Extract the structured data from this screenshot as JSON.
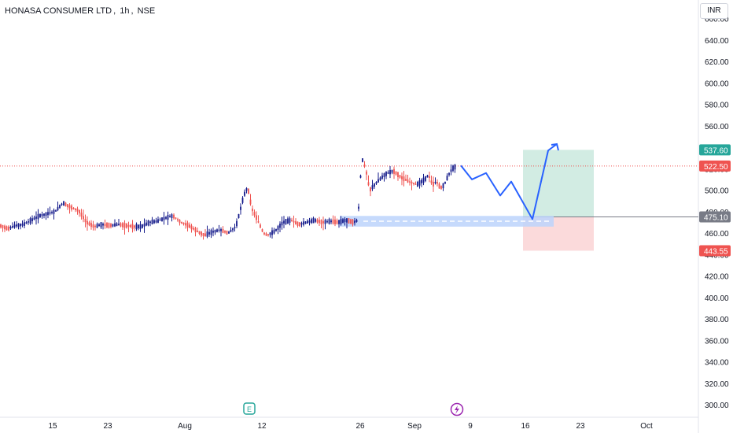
{
  "header": {
    "symbol": "HONASA CONSUMER LTD",
    "interval": "1h",
    "exchange": "NSE",
    "currency": "INR"
  },
  "colors": {
    "up": "#131a8a",
    "down": "#ef5350",
    "projection": "#2962ff",
    "target_zone": "#d2ece3",
    "stop_zone": "#fbdadb",
    "demand_zone": "#bcd4fb",
    "price_line": "#ef5350"
  },
  "icons": [
    "earnings-icon",
    "dividend-icon"
  ],
  "chart_data": {
    "type": "candlestick",
    "y_ticks": [
      300,
      320,
      340,
      360,
      380,
      400,
      420,
      440,
      460,
      480,
      500,
      520,
      540,
      560,
      580,
      600,
      620,
      640,
      660
    ],
    "ylim": [
      292,
      670
    ],
    "x_ticks": [
      {
        "label": "15",
        "index": 0
      },
      {
        "label": "23",
        "index": 1
      },
      {
        "label": "Aug",
        "index": 2
      },
      {
        "label": "12",
        "index": 3
      },
      {
        "label": "26",
        "index": 4
      },
      {
        "label": "Sep",
        "index": 5
      },
      {
        "label": "9",
        "index": 6
      },
      {
        "label": "16",
        "index": 7
      },
      {
        "label": "23",
        "index": 8
      },
      {
        "label": "Oct",
        "index": 9
      }
    ],
    "price_path": [
      [
        0,
        467
      ],
      [
        10,
        464
      ],
      [
        20,
        467
      ],
      [
        30,
        468
      ],
      [
        40,
        472
      ],
      [
        50,
        476
      ],
      [
        60,
        478
      ],
      [
        70,
        480
      ],
      [
        80,
        488
      ],
      [
        90,
        484
      ],
      [
        100,
        481
      ],
      [
        110,
        470
      ],
      [
        120,
        466
      ],
      [
        130,
        468
      ],
      [
        140,
        467
      ],
      [
        150,
        468
      ],
      [
        160,
        467
      ],
      [
        170,
        466
      ],
      [
        180,
        466
      ],
      [
        190,
        470
      ],
      [
        200,
        471
      ],
      [
        210,
        474
      ],
      [
        220,
        476
      ],
      [
        230,
        470
      ],
      [
        240,
        467
      ],
      [
        250,
        462
      ],
      [
        260,
        458
      ],
      [
        270,
        461
      ],
      [
        280,
        463
      ],
      [
        290,
        460
      ],
      [
        300,
        466
      ],
      [
        305,
        480
      ],
      [
        310,
        495
      ],
      [
        315,
        503
      ],
      [
        320,
        483
      ],
      [
        325,
        476
      ],
      [
        330,
        468
      ],
      [
        335,
        460
      ],
      [
        340,
        458
      ],
      [
        350,
        462
      ],
      [
        360,
        470
      ],
      [
        370,
        472
      ],
      [
        380,
        468
      ],
      [
        390,
        470
      ],
      [
        400,
        472
      ],
      [
        410,
        470
      ],
      [
        420,
        471
      ],
      [
        430,
        470
      ],
      [
        440,
        472
      ],
      [
        450,
        470
      ],
      [
        455,
        472
      ],
      [
        460,
        530
      ],
      [
        465,
        520
      ],
      [
        470,
        500
      ],
      [
        480,
        508
      ],
      [
        490,
        515
      ],
      [
        500,
        518
      ],
      [
        510,
        512
      ],
      [
        520,
        508
      ],
      [
        530,
        505
      ],
      [
        540,
        510
      ],
      [
        545,
        514
      ],
      [
        550,
        505
      ],
      [
        555,
        508
      ],
      [
        560,
        502
      ],
      [
        565,
        505
      ],
      [
        570,
        514
      ],
      [
        575,
        520
      ],
      [
        580,
        522.5
      ]
    ],
    "last_price": 522.5,
    "levels": {
      "target": 537.6,
      "entry": 475.1,
      "stop": 443.55
    },
    "demand_zone": {
      "from": 466,
      "to": 476
    },
    "projection": [
      [
        586,
        523
      ],
      [
        600,
        510
      ],
      [
        618,
        516
      ],
      [
        636,
        495
      ],
      [
        650,
        508
      ],
      [
        677,
        473
      ],
      [
        697,
        537
      ],
      [
        708,
        543
      ]
    ],
    "badges": [
      {
        "label": "537.60",
        "value": 537.6,
        "color": "#26a69a"
      },
      {
        "label": "522.50",
        "value": 522.5,
        "color": "#ef5350"
      },
      {
        "label": "475.10",
        "value": 475.1,
        "color": "#787b86"
      },
      {
        "label": "443.55",
        "value": 443.55,
        "color": "#ef5350"
      }
    ]
  }
}
